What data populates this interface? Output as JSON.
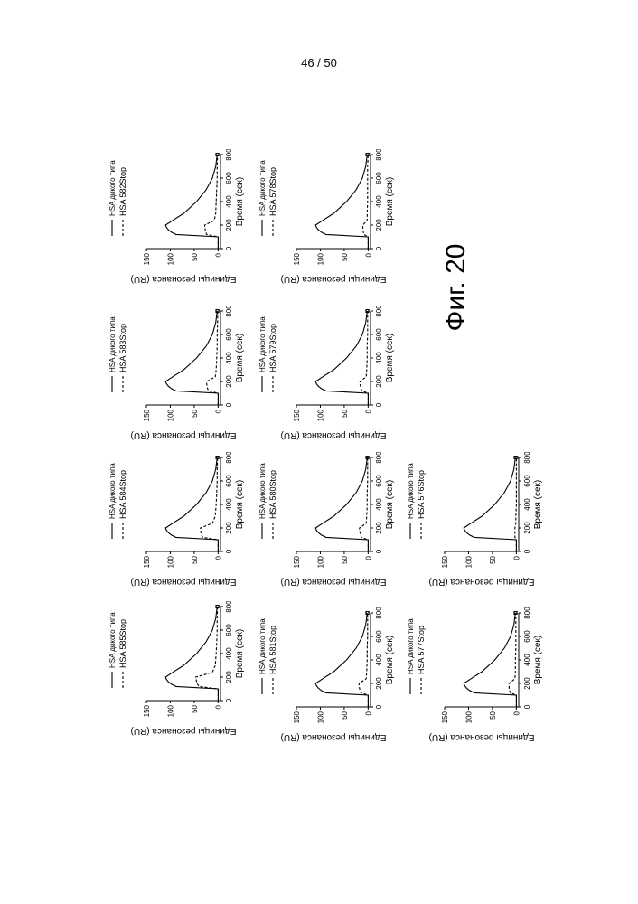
{
  "page_number": "46 / 50",
  "figure_caption": "Фиг. 20",
  "shared_axes": {
    "xlabel": "Время (сек)",
    "ylabel": "Единицы резонанса (RU)",
    "x_ticks": [
      "0",
      "200",
      "400",
      "600",
      "800"
    ],
    "y_ticks": [
      "0",
      "50",
      "100",
      "150"
    ],
    "xlim": [
      0,
      800
    ],
    "ylim": [
      -5,
      150
    ]
  },
  "chart_data": [
    {
      "type": "line",
      "xlabel": "Время (сек)",
      "ylabel": "Единицы резонанса (RU)",
      "xlim": [
        0,
        800
      ],
      "ylim": [
        -5,
        150
      ],
      "legend": "top-right",
      "series": [
        {
          "name": "HSA дикого типа",
          "style": "solid",
          "x": [
            0,
            100,
            120,
            140,
            160,
            180,
            200,
            240,
            300,
            400,
            500,
            600,
            700,
            800
          ],
          "y": [
            0,
            0,
            88,
            98,
            104,
            108,
            110,
            95,
            72,
            45,
            25,
            12,
            5,
            2
          ]
        },
        {
          "name": "HSA 585Stop",
          "style": "dashed",
          "x": [
            0,
            100,
            120,
            140,
            160,
            180,
            200,
            240,
            300,
            400,
            500,
            600,
            700,
            800
          ],
          "y": [
            0,
            0,
            40,
            43,
            45,
            46,
            47,
            12,
            6,
            4,
            3,
            2,
            2,
            1
          ]
        }
      ]
    },
    {
      "type": "line",
      "xlabel": "Время (сек)",
      "ylabel": "Единицы резонанса (RU)",
      "xlim": [
        0,
        800
      ],
      "ylim": [
        -5,
        150
      ],
      "legend": "top-right",
      "series": [
        {
          "name": "HSA дикого типа",
          "style": "solid",
          "x": [
            0,
            100,
            120,
            140,
            160,
            180,
            200,
            240,
            300,
            400,
            500,
            600,
            700,
            800
          ],
          "y": [
            0,
            0,
            88,
            98,
            104,
            108,
            110,
            95,
            72,
            45,
            25,
            12,
            5,
            2
          ]
        },
        {
          "name": "HSA 584Stop",
          "style": "dashed",
          "x": [
            0,
            100,
            120,
            140,
            160,
            180,
            200,
            240,
            300,
            400,
            500,
            600,
            700,
            800
          ],
          "y": [
            0,
            0,
            32,
            35,
            36,
            37,
            37,
            12,
            6,
            4,
            3,
            2,
            2,
            1
          ]
        }
      ]
    },
    {
      "type": "line",
      "xlabel": "Время (сек)",
      "ylabel": "Единицы резонанса (RU)",
      "xlim": [
        0,
        800
      ],
      "ylim": [
        -5,
        150
      ],
      "legend": "top-right",
      "series": [
        {
          "name": "HSA дикого типа",
          "style": "solid",
          "x": [
            0,
            100,
            120,
            140,
            160,
            180,
            200,
            240,
            300,
            400,
            500,
            600,
            700,
            800
          ],
          "y": [
            0,
            0,
            88,
            98,
            104,
            108,
            110,
            95,
            72,
            45,
            25,
            12,
            5,
            2
          ]
        },
        {
          "name": "HSA 583Stop",
          "style": "dashed",
          "x": [
            0,
            100,
            120,
            140,
            160,
            180,
            200,
            240,
            300,
            400,
            500,
            600,
            700,
            800
          ],
          "y": [
            0,
            0,
            20,
            22,
            23,
            24,
            24,
            6,
            4,
            3,
            2,
            2,
            1,
            1
          ]
        }
      ]
    },
    {
      "type": "line",
      "xlabel": "Время (сек)",
      "ylabel": "Единицы резонанса (RU)",
      "xlim": [
        0,
        800
      ],
      "ylim": [
        -5,
        150
      ],
      "legend": "top-right",
      "series": [
        {
          "name": "HSA дикого типа",
          "style": "solid",
          "x": [
            0,
            100,
            120,
            140,
            160,
            180,
            200,
            240,
            300,
            400,
            500,
            600,
            700,
            800
          ],
          "y": [
            0,
            0,
            88,
            98,
            104,
            108,
            110,
            95,
            72,
            45,
            25,
            12,
            5,
            2
          ]
        },
        {
          "name": "HSA 582Stop",
          "style": "dashed",
          "x": [
            0,
            100,
            120,
            140,
            160,
            180,
            200,
            240,
            300,
            400,
            500,
            600,
            700,
            800
          ],
          "y": [
            0,
            0,
            24,
            26,
            27,
            28,
            28,
            8,
            5,
            4,
            3,
            2,
            2,
            1
          ]
        }
      ]
    },
    {
      "type": "line",
      "xlabel": "Время (сек)",
      "ylabel": "Единицы резонанса (RU)",
      "xlim": [
        0,
        800
      ],
      "ylim": [
        -5,
        150
      ],
      "legend": "top-right",
      "series": [
        {
          "name": "HSA дикого типа",
          "style": "solid",
          "x": [
            0,
            100,
            120,
            140,
            160,
            180,
            200,
            240,
            300,
            400,
            500,
            600,
            700,
            800
          ],
          "y": [
            0,
            0,
            88,
            98,
            104,
            108,
            110,
            95,
            72,
            45,
            25,
            12,
            5,
            2
          ]
        },
        {
          "name": "HSA 581Stop",
          "style": "dashed",
          "x": [
            0,
            100,
            120,
            140,
            160,
            180,
            200,
            240,
            300,
            400,
            500,
            600,
            700,
            800
          ],
          "y": [
            0,
            0,
            15,
            17,
            18,
            19,
            19,
            4,
            3,
            2,
            2,
            1,
            1,
            1
          ]
        }
      ]
    },
    {
      "type": "line",
      "xlabel": "Время (сек)",
      "ylabel": "Единицы резонанса (RU)",
      "xlim": [
        0,
        800
      ],
      "ylim": [
        -5,
        150
      ],
      "legend": "top-right",
      "series": [
        {
          "name": "HSA дикого типа",
          "style": "solid",
          "x": [
            0,
            100,
            120,
            140,
            160,
            180,
            200,
            240,
            300,
            400,
            500,
            600,
            700,
            800
          ],
          "y": [
            0,
            0,
            88,
            98,
            104,
            108,
            110,
            95,
            72,
            45,
            25,
            12,
            5,
            2
          ]
        },
        {
          "name": "HSA 580Stop",
          "style": "dashed",
          "x": [
            0,
            100,
            120,
            140,
            160,
            180,
            200,
            240,
            300,
            400,
            500,
            600,
            700,
            800
          ],
          "y": [
            0,
            0,
            14,
            16,
            17,
            18,
            18,
            4,
            3,
            2,
            2,
            1,
            1,
            1
          ]
        }
      ]
    },
    {
      "type": "line",
      "xlabel": "Время (сек)",
      "ylabel": "Единицы резонанса (RU)",
      "xlim": [
        0,
        800
      ],
      "ylim": [
        -5,
        150
      ],
      "legend": "top-right",
      "series": [
        {
          "name": "HSA дикого типа",
          "style": "solid",
          "x": [
            0,
            100,
            120,
            140,
            160,
            180,
            200,
            240,
            300,
            400,
            500,
            600,
            700,
            800
          ],
          "y": [
            0,
            0,
            88,
            98,
            104,
            108,
            110,
            95,
            72,
            45,
            25,
            12,
            5,
            2
          ]
        },
        {
          "name": "HSA 579Stop",
          "style": "dashed",
          "x": [
            0,
            100,
            120,
            140,
            160,
            180,
            200,
            240,
            300,
            400,
            500,
            600,
            700,
            800
          ],
          "y": [
            0,
            0,
            13,
            15,
            16,
            17,
            17,
            4,
            3,
            2,
            2,
            1,
            1,
            1
          ]
        }
      ]
    },
    {
      "type": "line",
      "xlabel": "Время (сек)",
      "ylabel": "Единицы резонанса (RU)",
      "xlim": [
        0,
        800
      ],
      "ylim": [
        -5,
        150
      ],
      "legend": "top-right",
      "series": [
        {
          "name": "HSA дикого типа",
          "style": "solid",
          "x": [
            0,
            100,
            120,
            140,
            160,
            180,
            200,
            240,
            300,
            400,
            500,
            600,
            700,
            800
          ],
          "y": [
            0,
            0,
            88,
            98,
            104,
            108,
            110,
            95,
            72,
            45,
            25,
            12,
            5,
            2
          ]
        },
        {
          "name": "HSA 578Stop",
          "style": "dashed",
          "x": [
            0,
            100,
            120,
            140,
            160,
            180,
            200,
            240,
            300,
            400,
            500,
            600,
            700,
            800
          ],
          "y": [
            0,
            0,
            9,
            10,
            11,
            11,
            11,
            2,
            2,
            1,
            1,
            1,
            1,
            0
          ]
        }
      ]
    },
    {
      "type": "line",
      "xlabel": "Время (сек)",
      "ylabel": "Единицы резонанса (RU)",
      "xlim": [
        0,
        800
      ],
      "ylim": [
        -5,
        150
      ],
      "legend": "top-right",
      "series": [
        {
          "name": "HSA дикого типа",
          "style": "solid",
          "x": [
            0,
            100,
            120,
            140,
            160,
            180,
            200,
            240,
            300,
            400,
            500,
            600,
            700,
            800
          ],
          "y": [
            0,
            0,
            88,
            98,
            104,
            108,
            110,
            95,
            72,
            45,
            25,
            12,
            5,
            2
          ]
        },
        {
          "name": "HSA 577Stop",
          "style": "dashed",
          "x": [
            0,
            100,
            120,
            140,
            160,
            180,
            200,
            240,
            300,
            400,
            500,
            600,
            700,
            800
          ],
          "y": [
            0,
            0,
            13,
            14,
            15,
            15,
            15,
            3,
            2,
            2,
            1,
            1,
            1,
            1
          ]
        }
      ]
    },
    {
      "type": "line",
      "xlabel": "Время (сек)",
      "ylabel": "Единицы резонанса (RU)",
      "xlim": [
        0,
        800
      ],
      "ylim": [
        -5,
        150
      ],
      "legend": "top-right",
      "series": [
        {
          "name": "HSA дикого типа",
          "style": "solid",
          "x": [
            0,
            100,
            120,
            140,
            160,
            180,
            200,
            240,
            300,
            400,
            500,
            600,
            700,
            800
          ],
          "y": [
            0,
            0,
            88,
            98,
            104,
            108,
            110,
            95,
            72,
            45,
            25,
            12,
            5,
            2
          ]
        },
        {
          "name": "HSA 576Stop",
          "style": "dashed",
          "x": [
            0,
            100,
            120,
            140,
            160,
            180,
            200,
            240,
            300,
            400,
            500,
            600,
            700,
            800
          ],
          "y": [
            0,
            0,
            3,
            3,
            3,
            3,
            3,
            1,
            1,
            0,
            0,
            0,
            0,
            0
          ]
        }
      ]
    }
  ]
}
